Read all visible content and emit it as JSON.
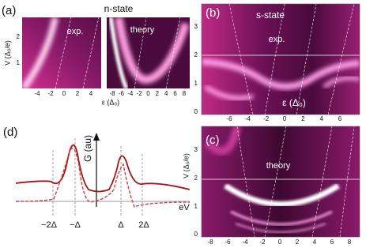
{
  "panels": [
    {
      "label": "(a)",
      "title": "n-state",
      "y_label": "V (Δ₀/e)",
      "y_ticks": [
        "2",
        "1"
      ],
      "x_label": "ε (Δ₀)",
      "subpanels": [
        {
          "annotation": "exp.",
          "x_ticks": [
            "-4",
            "-2",
            "0",
            "2",
            "4"
          ]
        },
        {
          "annotation": "theory",
          "x_ticks": [
            "-8",
            "-6",
            "-4",
            "-2",
            "0",
            "2",
            "4",
            "6",
            "8"
          ]
        }
      ]
    },
    {
      "label": "(b)",
      "title": "s-state",
      "annotation": "exp.",
      "x_label": "ε (Δ₀)",
      "y_ticks": [
        "3",
        "2",
        "1",
        "0"
      ],
      "x_ticks": [
        "-6",
        "-4",
        "-2",
        "0",
        "2",
        "4",
        "6"
      ]
    },
    {
      "label": "(c)",
      "annotation": "theory",
      "y_label": "V (Δ₀/e)",
      "y_ticks": [
        "3",
        "2",
        "1",
        "0"
      ],
      "x_ticks": [
        "-8",
        "-6",
        "-4",
        "-2",
        "0",
        "2",
        "4",
        "6",
        "8"
      ]
    },
    {
      "label": "(d)",
      "y_label": "G (au)",
      "x_label": "eV",
      "x_ticks": [
        "−2Δ",
        "−Δ",
        "Δ",
        "2Δ"
      ]
    }
  ]
}
